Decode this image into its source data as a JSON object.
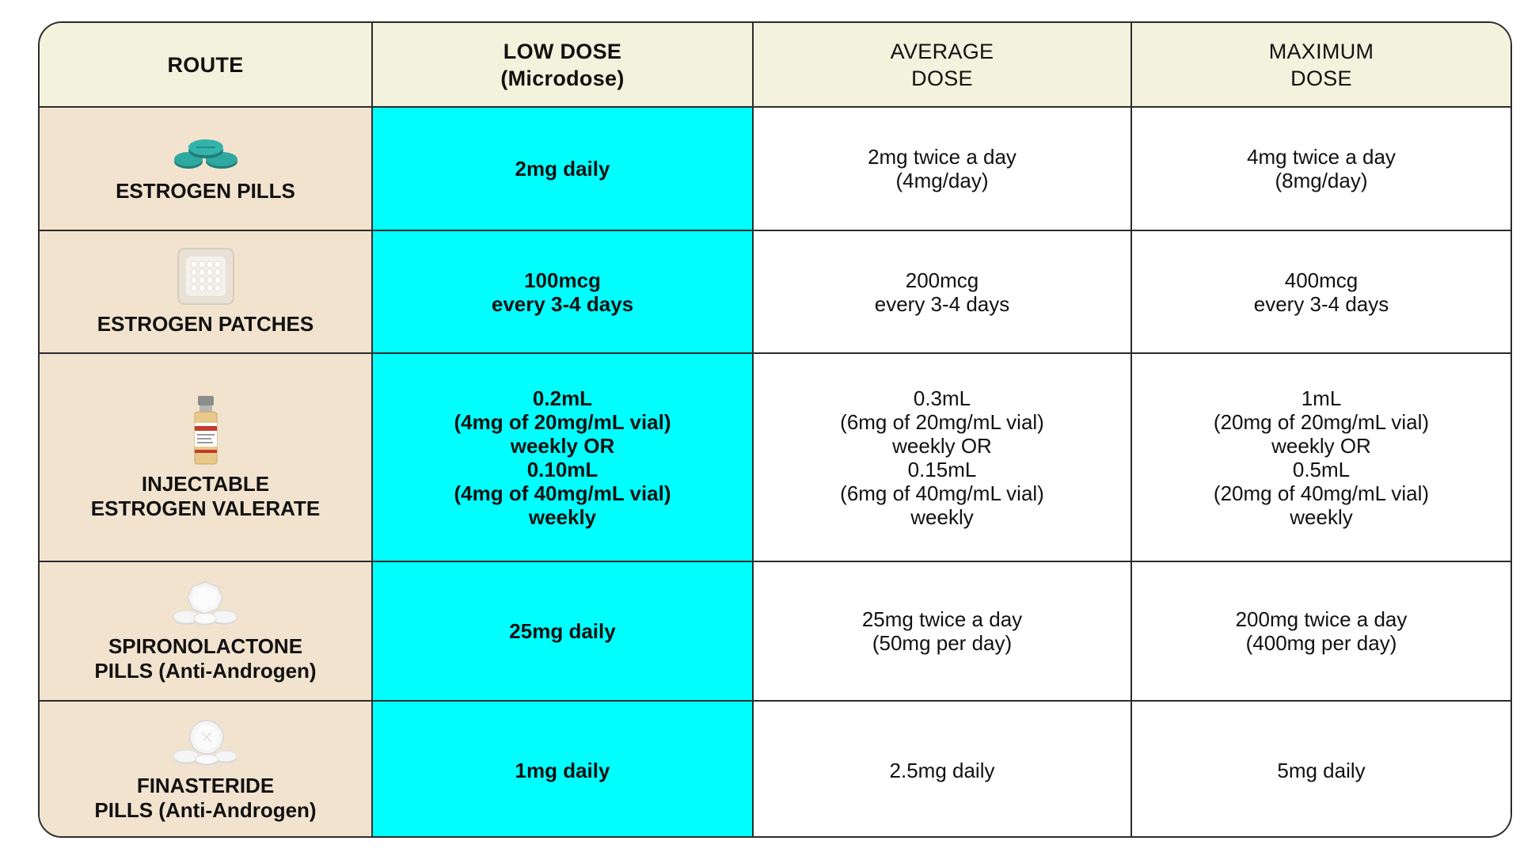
{
  "header": {
    "route": "ROUTE",
    "low_dose": "LOW DOSE\n(Microdose)",
    "average_dose": "AVERAGE\nDOSE",
    "maximum_dose": "MAXIMUM\nDOSE"
  },
  "rows": [
    {
      "route": "ESTROGEN PILLS",
      "icon": "estrogen-pills-icon",
      "low": "2mg daily",
      "average": "2mg twice a day\n(4mg/day)",
      "maximum": "4mg twice a day\n(8mg/day)"
    },
    {
      "route": "ESTROGEN PATCHES",
      "icon": "estrogen-patch-icon",
      "low": "100mcg\nevery 3-4 days",
      "average": "200mcg\nevery 3-4 days",
      "maximum": "400mcg\nevery 3-4 days"
    },
    {
      "route": "INJECTABLE\nESTROGEN VALERATE",
      "icon": "injectable-vial-icon",
      "low": "0.2mL\n(4mg of 20mg/mL vial)\nweekly OR\n0.10mL\n(4mg of 40mg/mL vial)\nweekly",
      "average": "0.3mL\n(6mg of 20mg/mL vial)\nweekly OR\n0.15mL\n(6mg of 40mg/mL vial)\nweekly",
      "maximum": "1mL\n(20mg of 20mg/mL vial)\nweekly OR\n0.5mL\n(20mg of 40mg/mL vial)\nweekly"
    },
    {
      "route": "SPIRONOLACTONE\nPILLS (Anti-Androgen)",
      "icon": "spironolactone-pills-icon",
      "low": "25mg daily",
      "average": "25mg twice a day\n(50mg per day)",
      "maximum": "200mg twice a day\n(400mg per day)"
    },
    {
      "route": "FINASTERIDE\nPILLS (Anti-Androgen)",
      "icon": "finasteride-pills-icon",
      "low": "1mg daily",
      "average": "2.5mg daily",
      "maximum": "5mg daily"
    }
  ],
  "colors": {
    "header_bg": "#f3f2dc",
    "route_bg": "#f2e3cf",
    "low_dose_bg": "#00ffff",
    "border": "#2c2c2c",
    "estrogen_pill": "#2a9f98"
  }
}
